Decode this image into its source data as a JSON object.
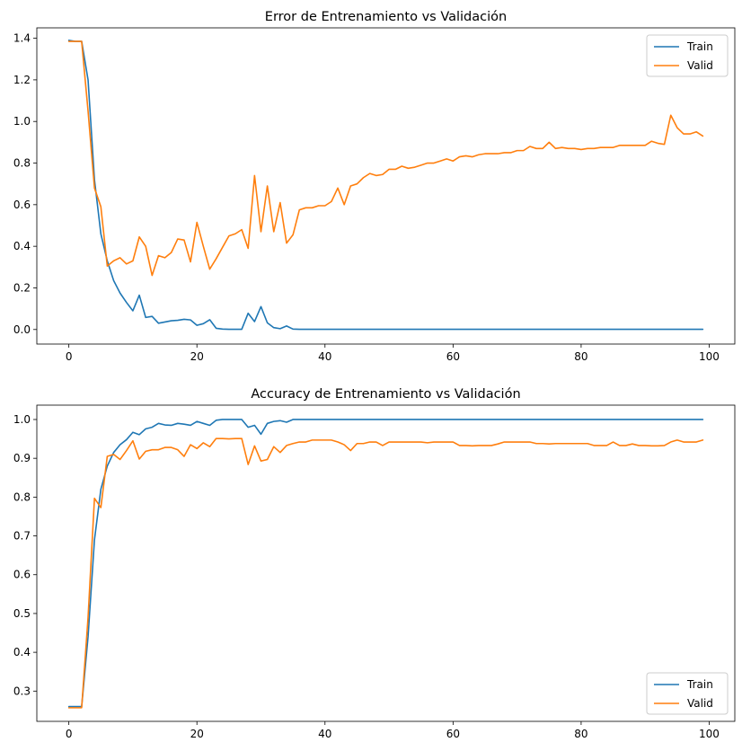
{
  "chart_data": [
    {
      "type": "line",
      "title": "Error de Entrenamiento vs Validación",
      "xlabel": "",
      "ylabel": "",
      "xlim": [
        -5,
        104
      ],
      "ylim": [
        -0.07,
        1.45
      ],
      "xticks": [
        0,
        20,
        40,
        60,
        80,
        100
      ],
      "yticks": [
        0.0,
        0.2,
        0.4,
        0.6,
        0.8,
        1.0,
        1.2,
        1.4
      ],
      "ytick_labels": [
        "0.0",
        "0.2",
        "0.4",
        "0.6",
        "0.8",
        "1.0",
        "1.2",
        "1.4"
      ],
      "grid": false,
      "legend_position": "upper right",
      "series": [
        {
          "name": "Train",
          "color": "#1f77b4",
          "values": [
            1.39,
            1.385,
            1.385,
            1.2,
            0.72,
            0.46,
            0.33,
            0.235,
            0.175,
            0.13,
            0.09,
            0.165,
            0.058,
            0.063,
            0.03,
            0.036,
            0.042,
            0.044,
            0.049,
            0.046,
            0.02,
            0.028,
            0.047,
            0.006,
            0.002,
            0.001,
            0.001,
            0.001,
            0.078,
            0.038,
            0.11,
            0.032,
            0.009,
            0.004,
            0.017,
            0.002,
            0.001,
            0.001,
            0.001,
            0.001,
            0.001,
            0.001,
            0.001,
            0.001,
            0.001,
            0.001,
            0.001,
            0.001,
            0.001,
            0.001,
            0.001,
            0.001,
            0.001,
            0.001,
            0.001,
            0.001,
            0.001,
            0.001,
            0.001,
            0.001,
            0.001,
            0.001,
            0.001,
            0.001,
            0.001,
            0.001,
            0.001,
            0.001,
            0.001,
            0.001,
            0.001,
            0.001,
            0.001,
            0.001,
            0.001,
            0.001,
            0.001,
            0.001,
            0.001,
            0.001,
            0.001,
            0.001,
            0.001,
            0.001,
            0.001,
            0.001,
            0.001,
            0.001,
            0.001,
            0.001,
            0.001,
            0.001,
            0.001,
            0.001,
            0.001,
            0.001,
            0.001,
            0.001,
            0.001,
            0.001
          ]
        },
        {
          "name": "Valid",
          "color": "#ff7f0e",
          "values": [
            1.385,
            1.385,
            1.385,
            1.05,
            0.68,
            0.59,
            0.305,
            0.33,
            0.345,
            0.315,
            0.33,
            0.445,
            0.4,
            0.26,
            0.355,
            0.345,
            0.37,
            0.435,
            0.43,
            0.325,
            0.515,
            0.4,
            0.29,
            0.34,
            0.395,
            0.45,
            0.46,
            0.48,
            0.39,
            0.74,
            0.47,
            0.69,
            0.47,
            0.61,
            0.415,
            0.455,
            0.575,
            0.585,
            0.585,
            0.595,
            0.595,
            0.615,
            0.68,
            0.6,
            0.69,
            0.7,
            0.73,
            0.75,
            0.74,
            0.745,
            0.77,
            0.77,
            0.785,
            0.775,
            0.78,
            0.79,
            0.8,
            0.8,
            0.81,
            0.82,
            0.81,
            0.83,
            0.835,
            0.83,
            0.84,
            0.845,
            0.845,
            0.845,
            0.85,
            0.85,
            0.86,
            0.86,
            0.88,
            0.87,
            0.87,
            0.9,
            0.87,
            0.875,
            0.87,
            0.87,
            0.865,
            0.87,
            0.87,
            0.875,
            0.875,
            0.875,
            0.885,
            0.885,
            0.885,
            0.885,
            0.885,
            0.905,
            0.895,
            0.89,
            1.03,
            0.97,
            0.94,
            0.94,
            0.95,
            0.93
          ]
        }
      ]
    },
    {
      "type": "line",
      "title": "Accuracy de Entrenamiento vs Validación",
      "xlabel": "",
      "ylabel": "",
      "xlim": [
        -5,
        104
      ],
      "ylim": [
        0.222,
        1.037
      ],
      "xticks": [
        0,
        20,
        40,
        60,
        80,
        100
      ],
      "yticks": [
        0.3,
        0.4,
        0.5,
        0.6,
        0.7,
        0.8,
        0.9,
        1.0
      ],
      "ytick_labels": [
        "0.3",
        "0.4",
        "0.5",
        "0.6",
        "0.7",
        "0.8",
        "0.9",
        "1.0"
      ],
      "grid": false,
      "legend_position": "lower right",
      "series": [
        {
          "name": "Train",
          "color": "#1f77b4",
          "values": [
            0.26,
            0.26,
            0.26,
            0.44,
            0.69,
            0.82,
            0.88,
            0.915,
            0.935,
            0.948,
            0.967,
            0.961,
            0.976,
            0.98,
            0.99,
            0.986,
            0.985,
            0.99,
            0.988,
            0.985,
            0.995,
            0.99,
            0.985,
            0.998,
            1.0,
            1.0,
            1.0,
            1.0,
            0.98,
            0.985,
            0.962,
            0.99,
            0.995,
            0.997,
            0.993,
            1.0,
            1.0,
            1.0,
            1.0,
            1.0,
            1.0,
            1.0,
            1.0,
            1.0,
            1.0,
            1.0,
            1.0,
            1.0,
            1.0,
            1.0,
            1.0,
            1.0,
            1.0,
            1.0,
            1.0,
            1.0,
            1.0,
            1.0,
            1.0,
            1.0,
            1.0,
            1.0,
            1.0,
            1.0,
            1.0,
            1.0,
            1.0,
            1.0,
            1.0,
            1.0,
            1.0,
            1.0,
            1.0,
            1.0,
            1.0,
            1.0,
            1.0,
            1.0,
            1.0,
            1.0,
            1.0,
            1.0,
            1.0,
            1.0,
            1.0,
            1.0,
            1.0,
            1.0,
            1.0,
            1.0,
            1.0,
            1.0,
            1.0,
            1.0,
            1.0,
            1.0,
            1.0,
            1.0,
            1.0,
            1.0
          ]
        },
        {
          "name": "Valid",
          "color": "#ff7f0e",
          "values": [
            0.257,
            0.257,
            0.257,
            0.49,
            0.797,
            0.773,
            0.905,
            0.91,
            0.897,
            0.92,
            0.945,
            0.898,
            0.918,
            0.922,
            0.922,
            0.928,
            0.928,
            0.922,
            0.905,
            0.935,
            0.925,
            0.94,
            0.93,
            0.951,
            0.951,
            0.95,
            0.951,
            0.951,
            0.884,
            0.932,
            0.893,
            0.897,
            0.93,
            0.915,
            0.933,
            0.938,
            0.942,
            0.942,
            0.947,
            0.947,
            0.947,
            0.947,
            0.942,
            0.935,
            0.92,
            0.938,
            0.938,
            0.942,
            0.942,
            0.933,
            0.942,
            0.942,
            0.942,
            0.942,
            0.942,
            0.942,
            0.94,
            0.942,
            0.942,
            0.942,
            0.942,
            0.933,
            0.933,
            0.932,
            0.933,
            0.933,
            0.933,
            0.937,
            0.942,
            0.942,
            0.942,
            0.942,
            0.942,
            0.938,
            0.938,
            0.937,
            0.938,
            0.938,
            0.938,
            0.938,
            0.938,
            0.938,
            0.933,
            0.933,
            0.933,
            0.942,
            0.933,
            0.933,
            0.937,
            0.933,
            0.933,
            0.932,
            0.932,
            0.933,
            0.942,
            0.947,
            0.942,
            0.942,
            0.942,
            0.947
          ]
        }
      ]
    }
  ]
}
